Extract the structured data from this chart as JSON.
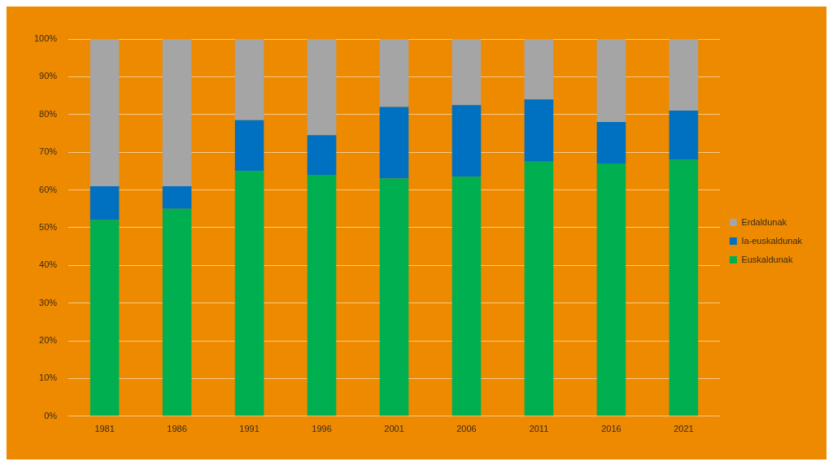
{
  "chart_data": {
    "type": "bar",
    "stacked": true,
    "categories": [
      "1981",
      "1986",
      "1991",
      "1996",
      "2001",
      "2006",
      "2011",
      "2016",
      "2021"
    ],
    "series": [
      {
        "name": "Euskaldunak",
        "color": "#00b050",
        "values": [
          52,
          55,
          65,
          64,
          63,
          63.5,
          67.5,
          67,
          68
        ]
      },
      {
        "name": "Ia-euskaldunak",
        "color": "#0070c0",
        "values": [
          9,
          6,
          13.5,
          10.5,
          19,
          19,
          16.5,
          11,
          13
        ]
      },
      {
        "name": "Erdaldunak",
        "color": "#a5a5a5",
        "values": [
          39,
          39,
          21.5,
          25.5,
          18,
          17.5,
          16,
          22,
          19
        ]
      }
    ],
    "ylim": [
      0,
      100
    ],
    "yticks": [
      {
        "value": 0,
        "label": "0%"
      },
      {
        "value": 10,
        "label": "10%"
      },
      {
        "value": 20,
        "label": "20%"
      },
      {
        "value": 30,
        "label": "30%"
      },
      {
        "value": 40,
        "label": "40%"
      },
      {
        "value": 50,
        "label": "50%"
      },
      {
        "value": 60,
        "label": "60%"
      },
      {
        "value": 70,
        "label": "70%"
      },
      {
        "value": 80,
        "label": "80%"
      },
      {
        "value": 90,
        "label": "90%"
      },
      {
        "value": 100,
        "label": "100%"
      }
    ],
    "grid": "y",
    "legend": "right"
  }
}
